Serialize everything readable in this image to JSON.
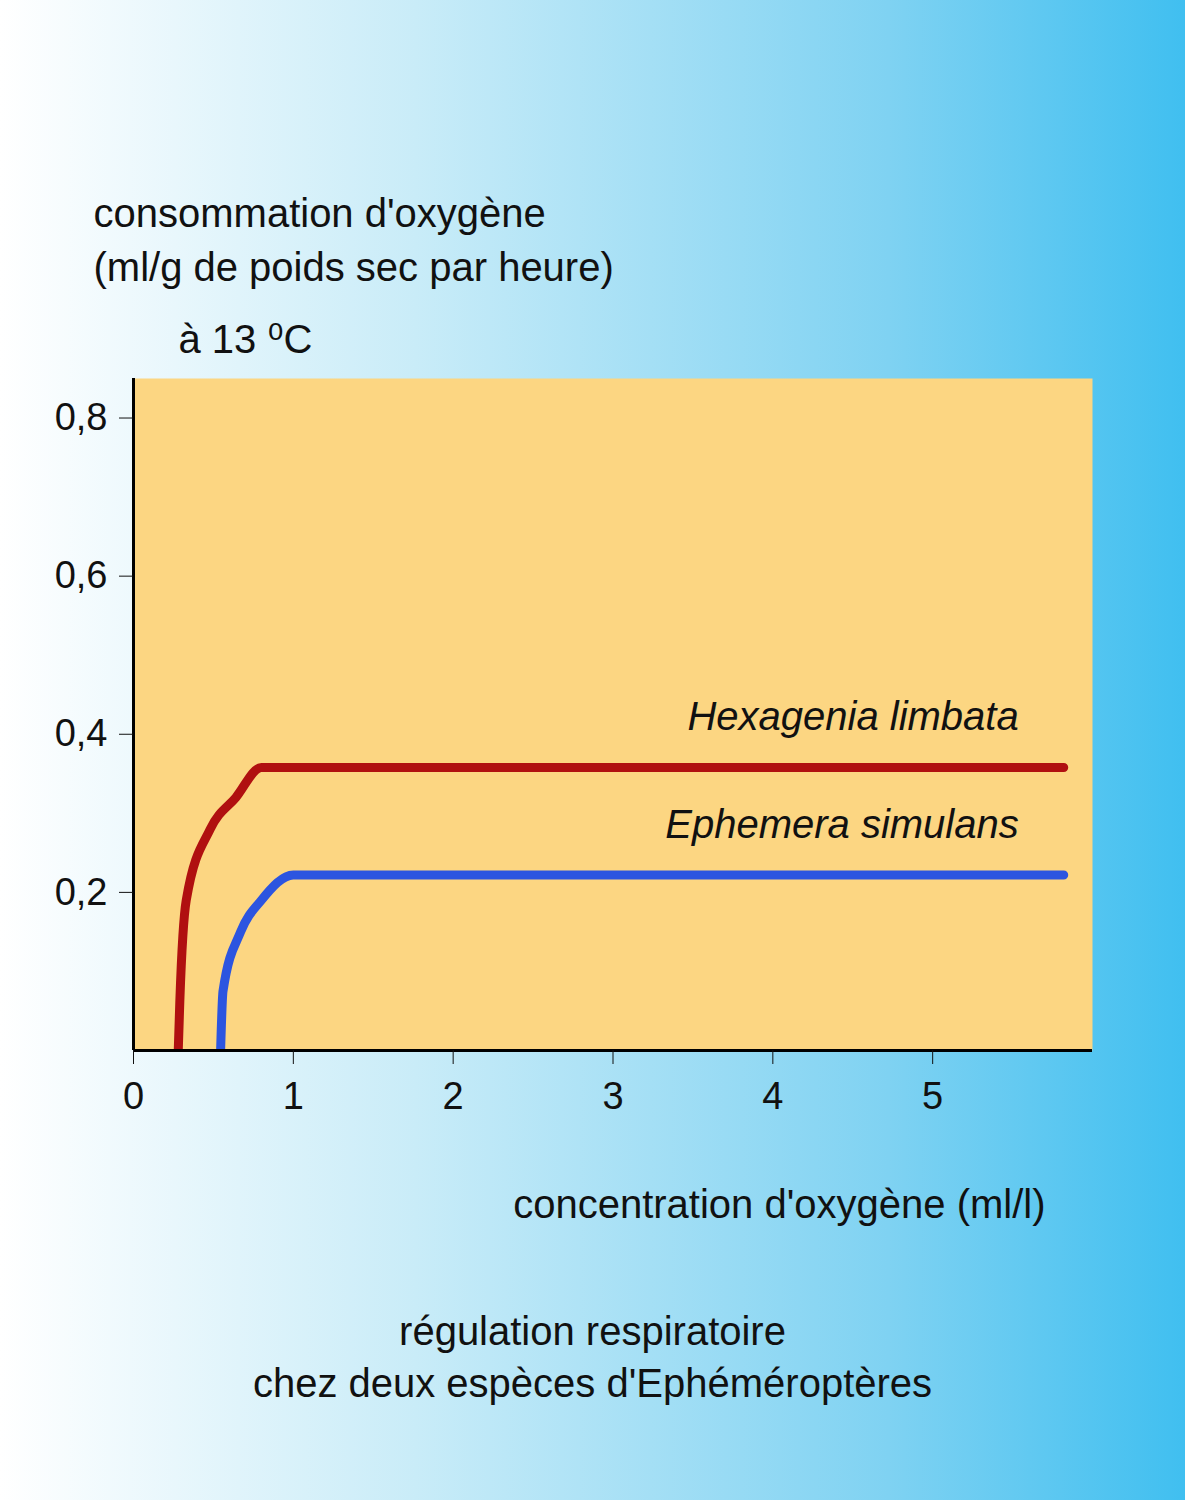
{
  "chart_data": {
    "type": "line",
    "title": "régulation respiratoire\nchez deux espèces d'Ephéméroptères",
    "x_label": "concentration d'oxygène (ml/l)",
    "y_label": "consommation d'oxygène\n(ml/g de poids sec par heure)",
    "annotations": [
      "à 13 ⁰C"
    ],
    "xlim": [
      0,
      6
    ],
    "ylim": [
      0,
      0.85
    ],
    "xticks": [
      0,
      1,
      2,
      3,
      4,
      5
    ],
    "yticks": [
      {
        "value": 0.2,
        "label": "0,2"
      },
      {
        "value": 0.4,
        "label": "0,4"
      },
      {
        "value": 0.6,
        "label": "0,6"
      },
      {
        "value": 0.8,
        "label": "0,8"
      }
    ],
    "grid": false,
    "series": [
      {
        "name": "Hexagenia limbata",
        "color": "#b01010",
        "x": [
          0.28,
          0.29,
          0.33,
          0.48,
          0.64,
          0.8,
          5.82
        ],
        "values": [
          0,
          0.063,
          0.19,
          0.28,
          0.32,
          0.358,
          0.358
        ]
      },
      {
        "name": "Ephemera simulans",
        "color": "#2c55e0",
        "x": [
          0.545,
          0.56,
          0.67,
          0.8,
          1.0,
          5.82
        ],
        "values": [
          0,
          0.075,
          0.15,
          0.19,
          0.222,
          0.222
        ]
      }
    ]
  }
}
